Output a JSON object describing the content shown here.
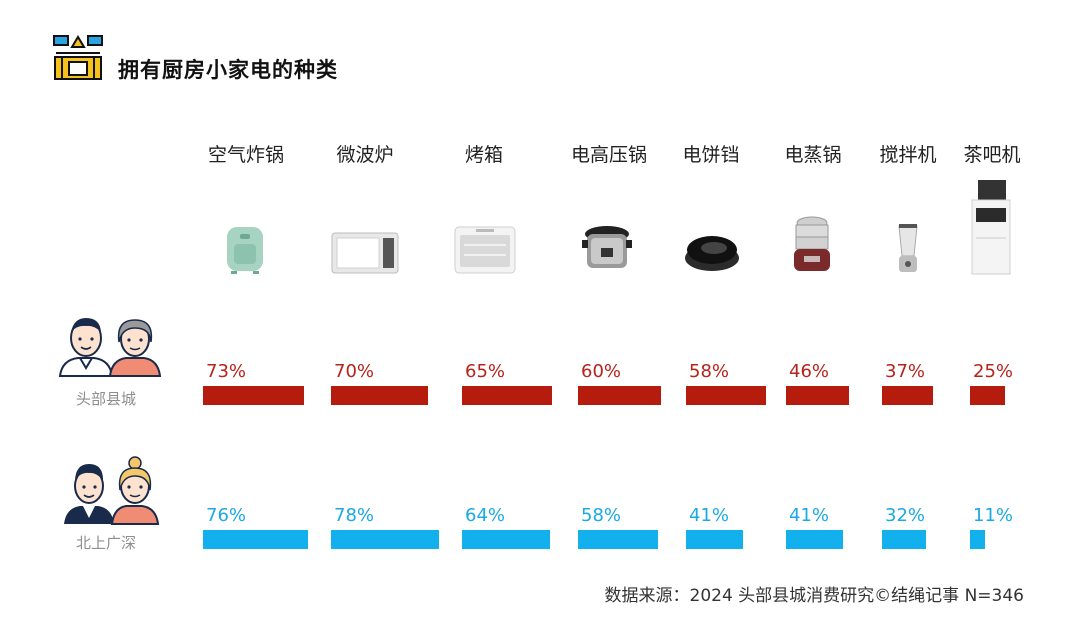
{
  "header": {
    "title": "拥有厨房小家电的种类",
    "icon": "kitchen-icon"
  },
  "groups": [
    {
      "label": "头部县城",
      "icon": "couple-older-icon"
    },
    {
      "label": "北上广深",
      "icon": "couple-younger-icon"
    }
  ],
  "product_icons": [
    "air-fryer-icon",
    "microwave-icon",
    "oven-icon",
    "pressure-cooker-icon",
    "electric-griddle-icon",
    "steamer-icon",
    "blender-icon",
    "water-dispenser-icon"
  ],
  "colors": {
    "series_county": "#b51c0d",
    "series_tier1": "#12b0ec"
  },
  "chart_data": {
    "type": "bar",
    "categories": [
      "空气炸锅",
      "微波炉",
      "烤箱",
      "电高压锅",
      "电饼铛",
      "电蒸锅",
      "搅拌机",
      "茶吧机"
    ],
    "series": [
      {
        "name": "头部县城",
        "values": [
          73,
          70,
          65,
          60,
          58,
          46,
          37,
          25
        ],
        "labels": [
          "73%",
          "70%",
          "65%",
          "60%",
          "58%",
          "46%",
          "37%",
          "25%"
        ]
      },
      {
        "name": "北上广深",
        "values": [
          76,
          78,
          64,
          58,
          41,
          41,
          32,
          11
        ],
        "labels": [
          "76%",
          "78%",
          "64%",
          "58%",
          "41%",
          "41%",
          "32%",
          "11%"
        ]
      }
    ],
    "ylim": [
      0,
      100
    ],
    "legend": "none",
    "grid": false
  },
  "source": "数据来源：2024 头部县城消费研究©结绳记事 N=346"
}
